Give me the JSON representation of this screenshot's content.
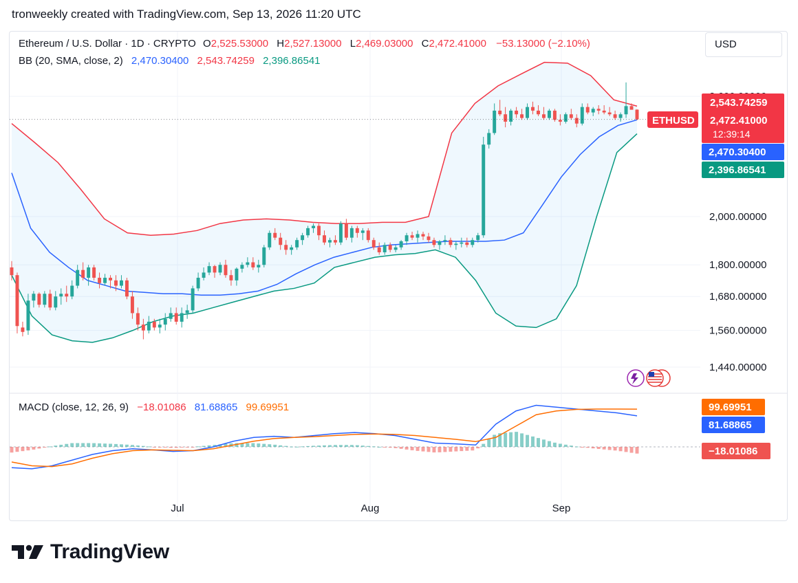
{
  "header": {
    "text": "tronweekly created with TradingView.com, Sep 13, 2026 11:20 UTC"
  },
  "currency_button": {
    "label": "USD"
  },
  "brand": {
    "name": "TradingView"
  },
  "legend": {
    "symbol": "Ethereum / U.S. Dollar · 1D · CRYPTO",
    "o_label": "O",
    "o_value": "2,525.53000",
    "h_label": "H",
    "h_value": "2,527.13000",
    "l_label": "L",
    "l_value": "2,469.03000",
    "c_label": "C",
    "c_value": "2,472.41000",
    "change": "−53.13000 (−2.10%)",
    "bb_label": "BB (20, SMA, close, 2)",
    "bb_basis": "2,470.30400",
    "bb_upper": "2,543.74259",
    "bb_lower": "2,396.86541",
    "macd_label": "MACD (close, 12, 26, 9)",
    "macd_hist": "−18.01086",
    "macd_line": "81.68865",
    "macd_signal": "99.69951"
  },
  "price_scale": {
    "ticks": [
      "2,600.00000",
      "2,000.00000",
      "1,800.00000",
      "1,680.00000",
      "1,560.00000",
      "1,440.00000"
    ],
    "symbol_tag": "ETHUSD",
    "last_price": "2,472.41000",
    "countdown": "12:39:14",
    "upper_band_label": "2,543.74259",
    "basis_label": "2,470.30400",
    "lower_band_label": "2,396.86541"
  },
  "macd_scale": {
    "signal_label": "99.69951",
    "macd_label": "81.68865",
    "hist_label": "−18.01086"
  },
  "colors": {
    "up": "#26a69a",
    "down": "#ef5350",
    "basis": "#2962ff",
    "upper": "#f23645",
    "lower": "#089981",
    "band_fill": "#2196f3",
    "macd": "#2962ff",
    "signal": "#ff6d00"
  },
  "chart_data": [
    {
      "type": "candlestick",
      "title": "Ethereum / U.S. Dollar · 1D · CRYPTO",
      "x_ticks": [
        "Jul",
        "Aug",
        "Sep"
      ],
      "y_ticks": [
        2600,
        2000,
        1800,
        1680,
        1560,
        1440
      ],
      "ylim": [
        1400,
        2750
      ],
      "scale": "log",
      "ohlc": [
        [
          1790,
          1815,
          1740,
          1760
        ],
        [
          1760,
          1770,
          1550,
          1575
        ],
        [
          1570,
          1590,
          1540,
          1555
        ],
        [
          1560,
          1690,
          1545,
          1665
        ],
        [
          1665,
          1700,
          1640,
          1690
        ],
        [
          1690,
          1695,
          1640,
          1650
        ],
        [
          1650,
          1700,
          1640,
          1690
        ],
        [
          1690,
          1705,
          1630,
          1640
        ],
        [
          1640,
          1700,
          1630,
          1680
        ],
        [
          1680,
          1710,
          1650,
          1690
        ],
        [
          1690,
          1720,
          1660,
          1680
        ],
        [
          1680,
          1740,
          1670,
          1720
        ],
        [
          1720,
          1800,
          1710,
          1780
        ],
        [
          1780,
          1810,
          1740,
          1750
        ],
        [
          1750,
          1800,
          1720,
          1790
        ],
        [
          1790,
          1800,
          1740,
          1750
        ],
        [
          1750,
          1770,
          1710,
          1730
        ],
        [
          1730,
          1765,
          1720,
          1750
        ],
        [
          1750,
          1760,
          1710,
          1740
        ],
        [
          1740,
          1760,
          1700,
          1720
        ],
        [
          1720,
          1760,
          1710,
          1740
        ],
        [
          1740,
          1750,
          1670,
          1680
        ],
        [
          1680,
          1700,
          1600,
          1620
        ],
        [
          1620,
          1640,
          1560,
          1580
        ],
        [
          1580,
          1600,
          1530,
          1560
        ],
        [
          1560,
          1610,
          1550,
          1590
        ],
        [
          1590,
          1600,
          1560,
          1570
        ],
        [
          1570,
          1600,
          1550,
          1580
        ],
        [
          1580,
          1620,
          1560,
          1600
        ],
        [
          1600,
          1640,
          1590,
          1620
        ],
        [
          1620,
          1640,
          1580,
          1590
        ],
        [
          1590,
          1640,
          1570,
          1620
        ],
        [
          1620,
          1650,
          1600,
          1630
        ],
        [
          1630,
          1720,
          1620,
          1710
        ],
        [
          1710,
          1770,
          1700,
          1750
        ],
        [
          1750,
          1790,
          1740,
          1770
        ],
        [
          1770,
          1810,
          1760,
          1795
        ],
        [
          1795,
          1800,
          1750,
          1770
        ],
        [
          1770,
          1810,
          1760,
          1800
        ],
        [
          1800,
          1820,
          1750,
          1760
        ],
        [
          1760,
          1780,
          1720,
          1740
        ],
        [
          1740,
          1790,
          1720,
          1785
        ],
        [
          1785,
          1810,
          1770,
          1800
        ],
        [
          1800,
          1830,
          1790,
          1810
        ],
        [
          1810,
          1830,
          1780,
          1790
        ],
        [
          1790,
          1820,
          1770,
          1800
        ],
        [
          1800,
          1880,
          1790,
          1870
        ],
        [
          1870,
          1940,
          1860,
          1930
        ],
        [
          1930,
          1950,
          1900,
          1910
        ],
        [
          1910,
          1930,
          1860,
          1880
        ],
        [
          1880,
          1900,
          1840,
          1860
        ],
        [
          1860,
          1880,
          1840,
          1870
        ],
        [
          1870,
          1910,
          1860,
          1900
        ],
        [
          1900,
          1930,
          1880,
          1920
        ],
        [
          1920,
          1960,
          1910,
          1950
        ],
        [
          1950,
          1970,
          1930,
          1960
        ],
        [
          1960,
          1970,
          1900,
          1920
        ],
        [
          1920,
          1940,
          1880,
          1890
        ],
        [
          1890,
          1910,
          1870,
          1900
        ],
        [
          1900,
          1920,
          1880,
          1890
        ],
        [
          1890,
          1980,
          1880,
          1970
        ],
        [
          1970,
          1990,
          1900,
          1910
        ],
        [
          1910,
          1960,
          1890,
          1950
        ],
        [
          1950,
          1960,
          1910,
          1930
        ],
        [
          1930,
          1950,
          1900,
          1940
        ],
        [
          1940,
          1950,
          1890,
          1900
        ],
        [
          1900,
          1910,
          1860,
          1870
        ],
        [
          1870,
          1890,
          1840,
          1850
        ],
        [
          1850,
          1890,
          1840,
          1880
        ],
        [
          1880,
          1890,
          1850,
          1860
        ],
        [
          1860,
          1880,
          1850,
          1870
        ],
        [
          1870,
          1900,
          1860,
          1895
        ],
        [
          1895,
          1930,
          1880,
          1920
        ],
        [
          1920,
          1935,
          1900,
          1910
        ],
        [
          1910,
          1940,
          1890,
          1925
        ],
        [
          1925,
          1935,
          1900,
          1915
        ],
        [
          1915,
          1930,
          1890,
          1900
        ],
        [
          1900,
          1910,
          1870,
          1880
        ],
        [
          1880,
          1900,
          1860,
          1895
        ],
        [
          1895,
          1920,
          1880,
          1900
        ],
        [
          1900,
          1910,
          1870,
          1880
        ],
        [
          1880,
          1895,
          1860,
          1885
        ],
        [
          1885,
          1910,
          1870,
          1890
        ],
        [
          1890,
          1910,
          1870,
          1880
        ],
        [
          1880,
          1910,
          1870,
          1900
        ],
        [
          1900,
          1930,
          1890,
          1920
        ],
        [
          1920,
          2380,
          1910,
          2340
        ],
        [
          2340,
          2420,
          2320,
          2400
        ],
        [
          2400,
          2560,
          2390,
          2520
        ],
        [
          2520,
          2580,
          2490,
          2500
        ],
        [
          2500,
          2540,
          2430,
          2460
        ],
        [
          2460,
          2530,
          2440,
          2520
        ],
        [
          2520,
          2540,
          2480,
          2500
        ],
        [
          2500,
          2530,
          2470,
          2480
        ],
        [
          2480,
          2560,
          2470,
          2540
        ],
        [
          2540,
          2570,
          2500,
          2520
        ],
        [
          2520,
          2550,
          2490,
          2500
        ],
        [
          2500,
          2540,
          2470,
          2480
        ],
        [
          2480,
          2530,
          2470,
          2520
        ],
        [
          2520,
          2530,
          2460,
          2470
        ],
        [
          2470,
          2500,
          2440,
          2460
        ],
        [
          2460,
          2510,
          2450,
          2500
        ],
        [
          2500,
          2530,
          2470,
          2480
        ],
        [
          2480,
          2500,
          2430,
          2450
        ],
        [
          2450,
          2560,
          2440,
          2540
        ],
        [
          2540,
          2560,
          2500,
          2510
        ],
        [
          2510,
          2540,
          2490,
          2530
        ],
        [
          2530,
          2550,
          2500,
          2520
        ],
        [
          2520,
          2550,
          2500,
          2510
        ],
        [
          2510,
          2540,
          2490,
          2500
        ],
        [
          2500,
          2520,
          2470,
          2480
        ],
        [
          2480,
          2510,
          2460,
          2500
        ],
        [
          2500,
          2680,
          2480,
          2545
        ],
        [
          2545,
          2560,
          2530,
          2525
        ],
        [
          2525.53,
          2527.13,
          2469.03,
          2472.41
        ]
      ],
      "bb_basis": [
        2200,
        1950,
        1850,
        1790,
        1740,
        1720,
        1700,
        1695,
        1690,
        1690,
        1685,
        1685,
        1690,
        1700,
        1725,
        1765,
        1800,
        1830,
        1850,
        1870,
        1880,
        1885,
        1890,
        1895,
        1895,
        1895,
        1900,
        1930,
        2050,
        2180,
        2290,
        2380,
        2440,
        2470
      ],
      "bb_upper": [
        2450,
        2350,
        2250,
        2120,
        1990,
        1930,
        1920,
        1925,
        1940,
        1970,
        1985,
        1990,
        1985,
        1975,
        1970,
        1970,
        1975,
        1975,
        2000,
        2400,
        2560,
        2660,
        2730,
        2800,
        2795,
        2720,
        2580,
        2545
      ],
      "bb_lower": [
        1760,
        1610,
        1545,
        1525,
        1520,
        1535,
        1560,
        1590,
        1610,
        1620,
        1640,
        1660,
        1680,
        1700,
        1710,
        1730,
        1790,
        1810,
        1830,
        1840,
        1845,
        1860,
        1830,
        1740,
        1620,
        1575,
        1570,
        1600,
        1720,
        2000,
        2300,
        2396
      ],
      "macd": [
        -55,
        -58,
        -50,
        -35,
        -20,
        -10,
        -5,
        -8,
        -12,
        -10,
        0,
        15,
        25,
        28,
        25,
        30,
        35,
        38,
        35,
        30,
        20,
        10,
        8,
        5,
        60,
        95,
        110,
        105,
        100,
        95,
        90,
        82
      ],
      "signal": [
        -40,
        -50,
        -52,
        -45,
        -30,
        -18,
        -10,
        -8,
        -9,
        -10,
        -5,
        5,
        15,
        22,
        25,
        27,
        30,
        33,
        34,
        33,
        30,
        25,
        20,
        14,
        25,
        55,
        85,
        95,
        99,
        100,
        100,
        99.7
      ]
    }
  ]
}
